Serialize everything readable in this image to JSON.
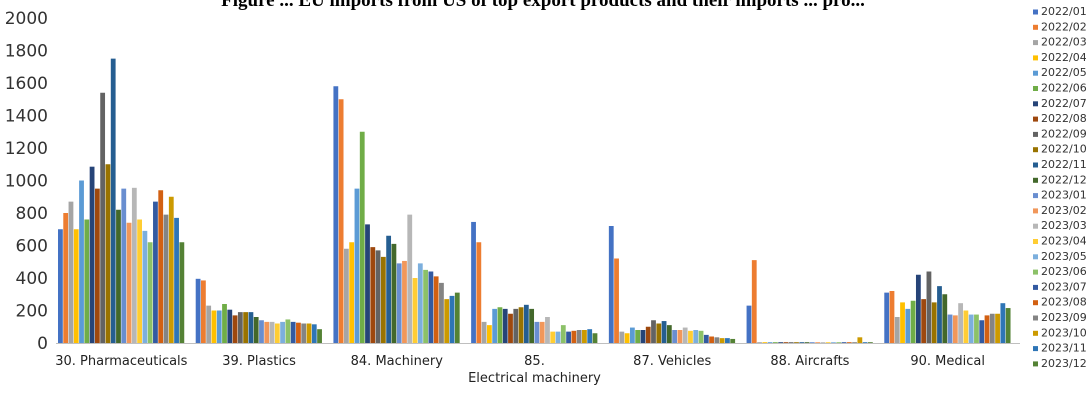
{
  "chart_data": {
    "type": "bar",
    "title": "Figure ... EU imports from US of top export products and their imports ... pro...",
    "categories": [
      "30. Pharmaceuticals",
      "39. Plastics",
      "84. Machinery",
      "85. Electrical machinery",
      "87. Vehicles",
      "88. Aircrafts",
      "90. Medical"
    ],
    "ylim": [
      0,
      2000
    ],
    "yticks": [
      0,
      200,
      400,
      600,
      800,
      1000,
      1200,
      1400,
      1600,
      1800,
      2000
    ],
    "grid": false,
    "legend_position": "right",
    "series": [
      {
        "name": "2022/01",
        "color": "#4472C4",
        "values": [
          700,
          395,
          1580,
          745,
          720,
          230,
          310
        ]
      },
      {
        "name": "2022/02",
        "color": "#ED7D31",
        "values": [
          800,
          385,
          1500,
          620,
          520,
          510,
          320
        ]
      },
      {
        "name": "2022/03",
        "color": "#A5A5A5",
        "values": [
          870,
          230,
          580,
          130,
          70,
          5,
          160
        ]
      },
      {
        "name": "2022/04",
        "color": "#FFC000",
        "values": [
          700,
          200,
          620,
          110,
          60,
          3,
          250
        ]
      },
      {
        "name": "2022/05",
        "color": "#5B9BD5",
        "values": [
          1000,
          200,
          950,
          210,
          95,
          2,
          210
        ]
      },
      {
        "name": "2022/06",
        "color": "#70AD47",
        "values": [
          760,
          240,
          1300,
          220,
          80,
          2,
          260
        ]
      },
      {
        "name": "2022/07",
        "color": "#264478",
        "values": [
          1085,
          205,
          730,
          210,
          80,
          2,
          420
        ]
      },
      {
        "name": "2022/08",
        "color": "#9E480E",
        "values": [
          950,
          170,
          590,
          180,
          100,
          2,
          270
        ]
      },
      {
        "name": "2022/09",
        "color": "#636363",
        "values": [
          1540,
          190,
          570,
          210,
          140,
          2,
          440
        ]
      },
      {
        "name": "2022/10",
        "color": "#997300",
        "values": [
          1100,
          190,
          530,
          220,
          120,
          2,
          250
        ]
      },
      {
        "name": "2022/11",
        "color": "#255E91",
        "values": [
          1750,
          190,
          660,
          235,
          135,
          2,
          350
        ]
      },
      {
        "name": "2022/12",
        "color": "#43682B",
        "values": [
          820,
          160,
          610,
          210,
          110,
          2,
          300
        ]
      },
      {
        "name": "2023/01",
        "color": "#698ED0",
        "values": [
          950,
          140,
          490,
          130,
          80,
          2,
          175
        ]
      },
      {
        "name": "2023/02",
        "color": "#F1975A",
        "values": [
          740,
          130,
          505,
          130,
          80,
          2,
          170
        ]
      },
      {
        "name": "2023/03",
        "color": "#B7B7B7",
        "values": [
          955,
          130,
          790,
          160,
          95,
          2,
          245
        ]
      },
      {
        "name": "2023/04",
        "color": "#FFCD33",
        "values": [
          760,
          120,
          400,
          70,
          75,
          2,
          200
        ]
      },
      {
        "name": "2023/05",
        "color": "#7CAFDD",
        "values": [
          690,
          130,
          490,
          70,
          80,
          2,
          175
        ]
      },
      {
        "name": "2023/06",
        "color": "#8CC168",
        "values": [
          620,
          145,
          450,
          110,
          75,
          2,
          175
        ]
      },
      {
        "name": "2023/07",
        "color": "#335AA1",
        "values": [
          870,
          130,
          440,
          70,
          50,
          2,
          140
        ]
      },
      {
        "name": "2023/08",
        "color": "#D26012",
        "values": [
          940,
          125,
          410,
          75,
          40,
          2,
          170
        ]
      },
      {
        "name": "2023/09",
        "color": "#848484",
        "values": [
          790,
          120,
          370,
          80,
          35,
          2,
          180
        ]
      },
      {
        "name": "2023/10",
        "color": "#CC9A00",
        "values": [
          900,
          120,
          270,
          80,
          30,
          35,
          180
        ]
      },
      {
        "name": "2023/11",
        "color": "#2E75B6",
        "values": [
          770,
          115,
          290,
          85,
          30,
          2,
          245
        ]
      },
      {
        "name": "2023/12",
        "color": "#548235",
        "values": [
          620,
          85,
          310,
          60,
          25,
          2,
          215
        ]
      }
    ]
  }
}
